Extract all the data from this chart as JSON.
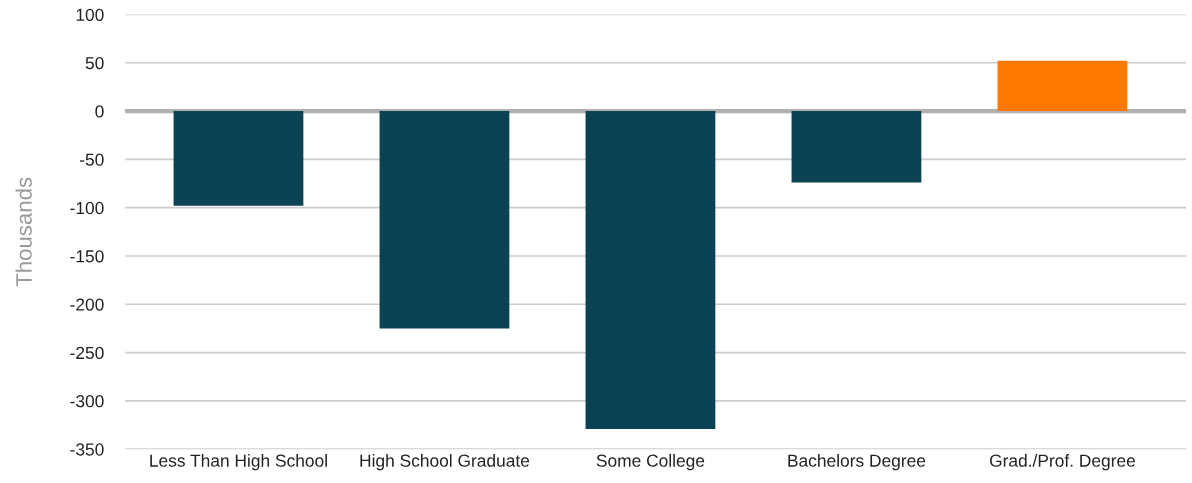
{
  "chart_data": {
    "type": "bar",
    "ylabel": "Thousands",
    "categories": [
      "Less Than High School",
      "High School Graduate",
      "Some College",
      "Bachelors Degree",
      "Grad./Prof. Degree"
    ],
    "values": [
      -98,
      -225,
      -329,
      -74,
      52
    ],
    "colors": [
      "#0b4254",
      "#0b4254",
      "#0b4254",
      "#0b4254",
      "#ff7800"
    ],
    "ylim": [
      -350,
      100
    ],
    "yticks": [
      -350,
      -300,
      -250,
      -200,
      -150,
      -100,
      -50,
      0,
      50,
      100
    ],
    "grid": "y",
    "ref_lines": [
      {
        "axis": "y",
        "value": 0,
        "color": "#b0b0b0"
      }
    ]
  }
}
